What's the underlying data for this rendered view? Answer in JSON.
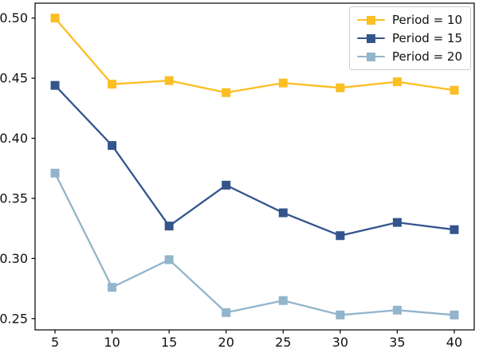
{
  "chart_data": {
    "type": "line",
    "title": "",
    "xlabel": "",
    "ylabel": "",
    "marker": "square",
    "grid": false,
    "x": [
      5,
      10,
      15,
      20,
      25,
      30,
      35,
      40
    ],
    "series": [
      {
        "name": "Period = 10",
        "color": "#FBBE23",
        "values": [
          0.5,
          0.445,
          0.448,
          0.438,
          0.446,
          0.442,
          0.447,
          0.44
        ]
      },
      {
        "name": "Period = 15",
        "color": "#33558C",
        "values": [
          0.444,
          0.394,
          0.327,
          0.361,
          0.338,
          0.319,
          0.33,
          0.324
        ]
      },
      {
        "name": "Period = 20",
        "color": "#92B4CC",
        "values": [
          0.371,
          0.276,
          0.299,
          0.255,
          0.265,
          0.253,
          0.257,
          0.253
        ]
      }
    ],
    "x_ticks": [
      5,
      10,
      15,
      20,
      25,
      30,
      35,
      40
    ],
    "x_tick_labels": [
      "5",
      "10",
      "15",
      "20",
      "25",
      "30",
      "35",
      "40"
    ],
    "y_ticks": [
      0.25,
      0.3,
      0.35,
      0.4,
      0.45,
      0.5
    ],
    "y_tick_labels": [
      "0.25",
      "0.30",
      "0.35",
      "0.40",
      "0.45",
      "0.50"
    ],
    "xlim": [
      3.25,
      41.75
    ],
    "ylim": [
      0.2406,
      0.5124
    ],
    "legend": {
      "position": "upper right",
      "entries": [
        "Period = 10",
        "Period = 15",
        "Period = 20"
      ]
    },
    "spine_color": "#000000",
    "tick_label_color": "#111111"
  }
}
